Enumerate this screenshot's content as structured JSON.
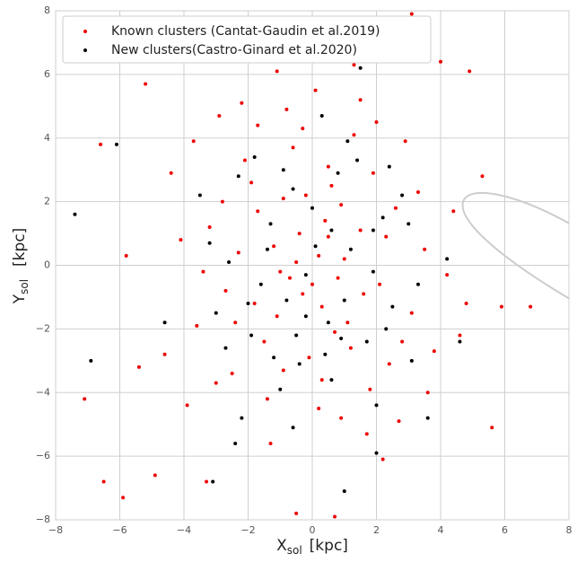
{
  "chart_data": {
    "type": "scatter",
    "x_label": {
      "symbol": "X",
      "subscript": "sol",
      "unit": "[kpc]"
    },
    "y_label": {
      "symbol": "Y",
      "subscript": "sol",
      "unit": "[kpc]"
    },
    "xlim": [
      -8,
      8
    ],
    "ylim": [
      -8,
      8
    ],
    "xticks": [
      {
        "value": -8,
        "label": "−8"
      },
      {
        "value": -6,
        "label": "−6"
      },
      {
        "value": -4,
        "label": "−4"
      },
      {
        "value": -2,
        "label": "−2"
      },
      0,
      2,
      4,
      6,
      8
    ],
    "yticks": [
      {
        "value": -8,
        "label": "−8"
      },
      {
        "value": -6,
        "label": "−6"
      },
      {
        "value": -4,
        "label": "−4"
      },
      {
        "value": -2,
        "label": "−2"
      },
      0,
      2,
      4,
      6,
      8
    ],
    "grid": true,
    "legend": "upper left",
    "series": [
      {
        "name": "Known clusters (Cantat-Gaudin et al.2019)",
        "color": "#ee0000",
        "x": [
          0.2,
          -0.5,
          0.8,
          -1.2,
          1.5,
          -0.3,
          0.4,
          -1.8,
          2.1,
          -0.9,
          1.1,
          -2.3,
          0.6,
          -1.5,
          2.6,
          -0.1,
          1.9,
          -2.7,
          3.1,
          -3.2,
          0.3,
          -0.6,
          2.4,
          -2.1,
          3.5,
          -3.6,
          1.3,
          -1.4,
          4.2,
          -4.1,
          0.9,
          -0.8,
          2.9,
          -3.0,
          4.8,
          -4.6,
          1.7,
          -2.2,
          5.3,
          -5.4,
          0.1,
          -6.6,
          6.8,
          -7.1,
          3.1,
          1.3,
          -1.1,
          4.9,
          -5.2,
          -0.5,
          0.7,
          -3.3,
          2.2,
          5.6,
          -5.9,
          -6.5,
          4.0,
          0.5,
          -0.7,
          1.0,
          -1.0,
          0.0,
          0.3,
          -0.4,
          1.6,
          -1.7,
          0.9,
          -1.1,
          2.3,
          -2.4,
          1.2,
          -0.2,
          0.7,
          -1.9,
          2.8,
          -2.8,
          3.3,
          -3.4,
          0.5,
          -0.9,
          1.8,
          -2.5,
          2.0,
          -1.7,
          3.8,
          -3.9,
          4.4,
          -4.4,
          0.2,
          -0.3,
          -5.8,
          5.9,
          -4.9,
          2.7,
          -1.3,
          1.5,
          -2.9,
          3.6,
          -3.7,
          4.6
        ],
        "y": [
          0.3,
          0.1,
          -0.4,
          0.6,
          1.1,
          -0.9,
          1.4,
          -1.2,
          -0.6,
          2.1,
          -1.8,
          0.4,
          2.5,
          -2.4,
          1.8,
          -2.9,
          2.9,
          -0.8,
          -1.5,
          1.2,
          -3.6,
          3.7,
          -3.1,
          3.3,
          0.5,
          -1.9,
          4.1,
          -4.2,
          -0.3,
          0.8,
          -4.8,
          4.9,
          3.9,
          -3.7,
          -1.2,
          -2.8,
          -5.3,
          5.1,
          2.8,
          -3.2,
          5.5,
          3.8,
          -1.3,
          -4.2,
          7.9,
          6.3,
          6.1,
          6.1,
          5.7,
          -7.8,
          -7.9,
          -6.8,
          -6.1,
          -5.1,
          -7.3,
          -6.8,
          6.4,
          0.9,
          -0.4,
          0.2,
          -0.2,
          -0.6,
          -1.3,
          1.0,
          -0.9,
          1.7,
          1.9,
          -1.6,
          0.9,
          -1.8,
          -2.6,
          2.2,
          -2.1,
          2.6,
          -2.4,
          2.0,
          2.3,
          -0.2,
          3.1,
          -3.3,
          -3.9,
          -3.4,
          4.5,
          4.4,
          -2.7,
          -4.4,
          1.7,
          2.9,
          -4.5,
          4.3,
          0.3,
          -1.3,
          -6.6,
          -4.9,
          -5.6,
          5.2,
          4.7,
          -4.0,
          3.9,
          -2.2
        ]
      },
      {
        "name": "New clusters(Castro-Ginard et al.2020)",
        "color": "#000000",
        "x": [
          0.5,
          -0.6,
          1.9,
          -1.9,
          0.9,
          -1.3,
          2.2,
          -0.4,
          1.4,
          -2.6,
          0.1,
          -0.2,
          0.6,
          -0.8,
          1.2,
          -1.6,
          2.5,
          -2.3,
          0.4,
          -1.0,
          2.0,
          -2.2,
          1.1,
          -1.8,
          3.0,
          -3.0,
          0.8,
          -0.5,
          1.7,
          -2.7,
          3.3,
          -3.2,
          0.3,
          -0.6,
          2.4,
          -2.4,
          4.6,
          -6.1,
          -7.4,
          -6.9,
          3.6,
          1.0,
          -3.1,
          2.0,
          -4.6,
          4.2,
          1.5,
          -2.0,
          0.0,
          1.0,
          -1.4,
          2.8,
          -0.9,
          0.6,
          -3.5,
          3.1,
          -1.2,
          1.9,
          -0.2,
          2.3
        ],
        "y": [
          -1.8,
          2.4,
          -0.2,
          -2.2,
          -2.3,
          1.3,
          1.5,
          -3.1,
          3.3,
          0.1,
          0.6,
          -0.3,
          1.1,
          -1.1,
          0.5,
          -0.6,
          -1.3,
          2.8,
          -2.8,
          -3.9,
          -4.4,
          -4.8,
          3.9,
          3.4,
          1.3,
          -1.5,
          2.9,
          -2.2,
          -2.4,
          -2.6,
          -0.6,
          0.7,
          4.7,
          -5.1,
          3.1,
          -5.6,
          -2.4,
          3.8,
          1.6,
          -3.0,
          -4.8,
          -7.1,
          -6.8,
          -5.9,
          -1.8,
          0.2,
          6.2,
          -1.2,
          1.8,
          -1.1,
          0.5,
          2.2,
          3.0,
          -3.6,
          2.2,
          -3.0,
          -2.9,
          1.1,
          -1.6,
          -2.0
        ]
      }
    ]
  }
}
